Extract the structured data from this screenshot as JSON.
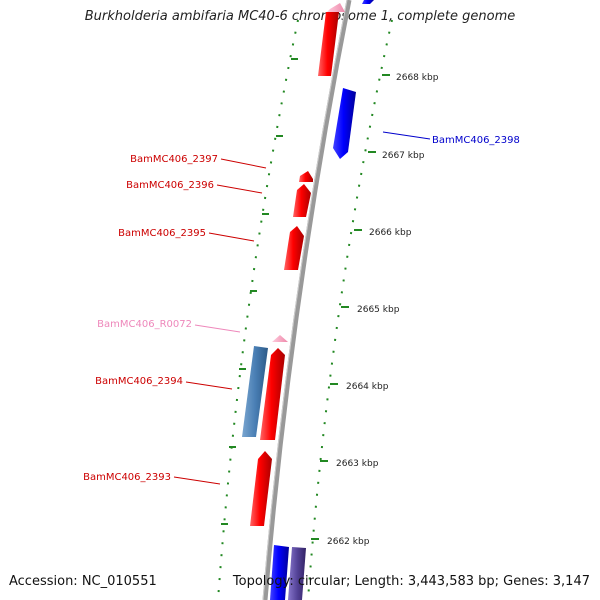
{
  "header": {
    "title": "Burkholderia ambifaria MC40-6 chromosome 1, complete genome"
  },
  "footer": {
    "accession": "Accession: NC_010551",
    "topology": "Topology: circular; Length: 3,443,583 bp; Genes: 3,147"
  },
  "map": {
    "backbone_color": "#888888",
    "tick_color": "#228822",
    "ticks": [
      {
        "label": "2668 kbp"
      },
      {
        "label": "2667 kbp"
      },
      {
        "label": "2666 kbp"
      },
      {
        "label": "2665 kbp"
      },
      {
        "label": "2664 kbp"
      },
      {
        "label": "2663 kbp"
      },
      {
        "label": "2662 kbp"
      }
    ],
    "genes": [
      {
        "label": "BamMC406_2398",
        "color": "#0000cc"
      },
      {
        "label": "BamMC406_2397",
        "color": "#cc0000"
      },
      {
        "label": "BamMC406_2396",
        "color": "#cc0000"
      },
      {
        "label": "BamMC406_2395",
        "color": "#cc0000"
      },
      {
        "label": "BamMC406_R0072",
        "color": "#ee88bb"
      },
      {
        "label": "BamMC406_2394",
        "color": "#cc0000"
      },
      {
        "label": "BamMC406_2393",
        "color": "#cc0000"
      }
    ]
  }
}
